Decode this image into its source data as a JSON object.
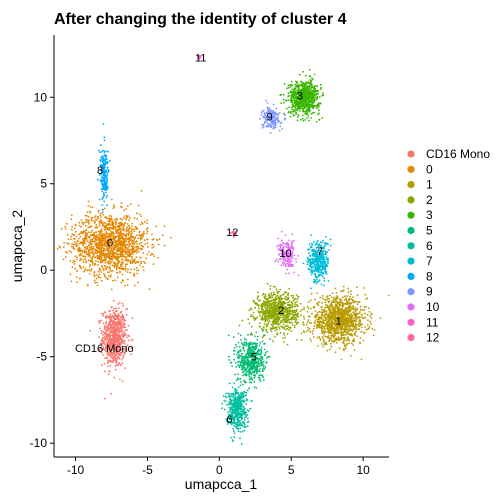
{
  "chart_data": {
    "type": "scatter",
    "title": "After changing the identity of cluster 4",
    "xlabel": "umapcca_1",
    "ylabel": "umapcca_2",
    "xlim": [
      -11.5,
      11.8
    ],
    "ylim": [
      -10.8,
      13.6
    ],
    "xticks": [
      -10,
      -5,
      0,
      5,
      10
    ],
    "yticks": [
      -10,
      -5,
      0,
      5,
      10
    ],
    "grid": false,
    "legend_position": "right",
    "series": [
      {
        "name": "CD16 Mono",
        "color": "#F8766D",
        "label_pos": [
          -8.0,
          -4.5
        ],
        "blobs": [
          {
            "cx": -7.3,
            "cy": -3.9,
            "sx": 0.7,
            "sy": 1.4,
            "n": 700
          }
        ]
      },
      {
        "name": "0",
        "color": "#E58700",
        "label_pos": [
          -7.6,
          1.6
        ],
        "blobs": [
          {
            "cx": -7.6,
            "cy": 1.5,
            "sx": 2.2,
            "sy": 1.5,
            "n": 1400
          }
        ]
      },
      {
        "name": "1",
        "color": "#B89B00",
        "label_pos": [
          8.3,
          -2.9
        ],
        "blobs": [
          {
            "cx": 8.3,
            "cy": -2.9,
            "sx": 1.6,
            "sy": 1.1,
            "n": 1100
          }
        ]
      },
      {
        "name": "2",
        "color": "#8CA700",
        "label_pos": [
          4.3,
          -2.3
        ],
        "blobs": [
          {
            "cx": 4.0,
            "cy": -2.4,
            "sx": 1.2,
            "sy": 0.9,
            "n": 800
          }
        ]
      },
      {
        "name": "3",
        "color": "#38B500",
        "label_pos": [
          5.6,
          10.1
        ],
        "blobs": [
          {
            "cx": 5.9,
            "cy": 10.0,
            "sx": 0.9,
            "sy": 0.8,
            "n": 700
          }
        ]
      },
      {
        "name": "5",
        "color": "#00BB72",
        "label_pos": [
          2.4,
          -5.0
        ],
        "blobs": [
          {
            "cx": 2.2,
            "cy": -5.2,
            "sx": 0.8,
            "sy": 1.1,
            "n": 500
          }
        ]
      },
      {
        "name": "6",
        "color": "#00BFA0",
        "label_pos": [
          0.7,
          -8.6
        ],
        "blobs": [
          {
            "cx": 1.2,
            "cy": -8.0,
            "sx": 0.6,
            "sy": 1.0,
            "n": 450
          }
        ]
      },
      {
        "name": "7",
        "color": "#00BCD8",
        "label_pos": [
          7.0,
          1.1
        ],
        "blobs": [
          {
            "cx": 6.9,
            "cy": 0.5,
            "sx": 0.6,
            "sy": 1.0,
            "n": 350
          }
        ]
      },
      {
        "name": "8",
        "color": "#00A7FF",
        "label_pos": [
          -8.3,
          5.8
        ],
        "blobs": [
          {
            "cx": -8.0,
            "cy": 5.5,
            "sx": 0.25,
            "sy": 1.3,
            "n": 200
          }
        ]
      },
      {
        "name": "9",
        "color": "#7F96FF",
        "label_pos": [
          3.5,
          8.9
        ],
        "blobs": [
          {
            "cx": 3.6,
            "cy": 8.8,
            "sx": 0.5,
            "sy": 0.5,
            "n": 200
          }
        ]
      },
      {
        "name": "10",
        "color": "#E16CF6",
        "label_pos": [
          4.6,
          1.0
        ],
        "blobs": [
          {
            "cx": 4.7,
            "cy": 0.9,
            "sx": 0.5,
            "sy": 0.7,
            "n": 180
          }
        ]
      },
      {
        "name": "11",
        "color": "#FF61C9",
        "label_pos": [
          -1.3,
          12.3
        ],
        "blobs": [
          {
            "cx": -1.4,
            "cy": 12.3,
            "sx": 0.12,
            "sy": 0.08,
            "n": 20
          }
        ]
      },
      {
        "name": "12",
        "color": "#FF68A0",
        "label_pos": [
          0.9,
          2.2
        ],
        "blobs": [
          {
            "cx": 1.0,
            "cy": 2.1,
            "sx": 0.15,
            "sy": 0.12,
            "n": 20
          }
        ]
      }
    ]
  }
}
